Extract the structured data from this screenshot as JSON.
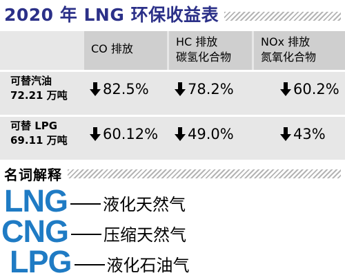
{
  "title": "2020 年 LNG 环保收益表",
  "table": {
    "columns": [
      {
        "line1": "CO 排放",
        "line2": ""
      },
      {
        "line1": "HC 排放",
        "line2": "碳氢化合物"
      },
      {
        "line1": "NOx 排放",
        "line2": "氮氧化合物"
      }
    ],
    "rows": [
      {
        "label1": "可替汽油",
        "label2": "72.21 万吨",
        "values": [
          "82.5%",
          "78.2%",
          "60.2%"
        ]
      },
      {
        "label1": "可替 LPG",
        "label2": "69.11 万吨",
        "values": [
          "60.12%",
          "49.0%",
          "43%"
        ]
      }
    ],
    "change_icon": "down-arrow-icon",
    "colors": {
      "header_bg": "#cfcfcf",
      "body_bg": "#e7e7e7"
    }
  },
  "glossary": {
    "title": "名词解释",
    "items": [
      {
        "abbr": "LNG",
        "meaning": "液化天然气"
      },
      {
        "abbr": "CNG",
        "meaning": "压缩天然气"
      },
      {
        "abbr": "LPG",
        "meaning": "液化石油气"
      }
    ],
    "abbr_color": "#1f7bc4"
  },
  "title_color": "#2b3088"
}
